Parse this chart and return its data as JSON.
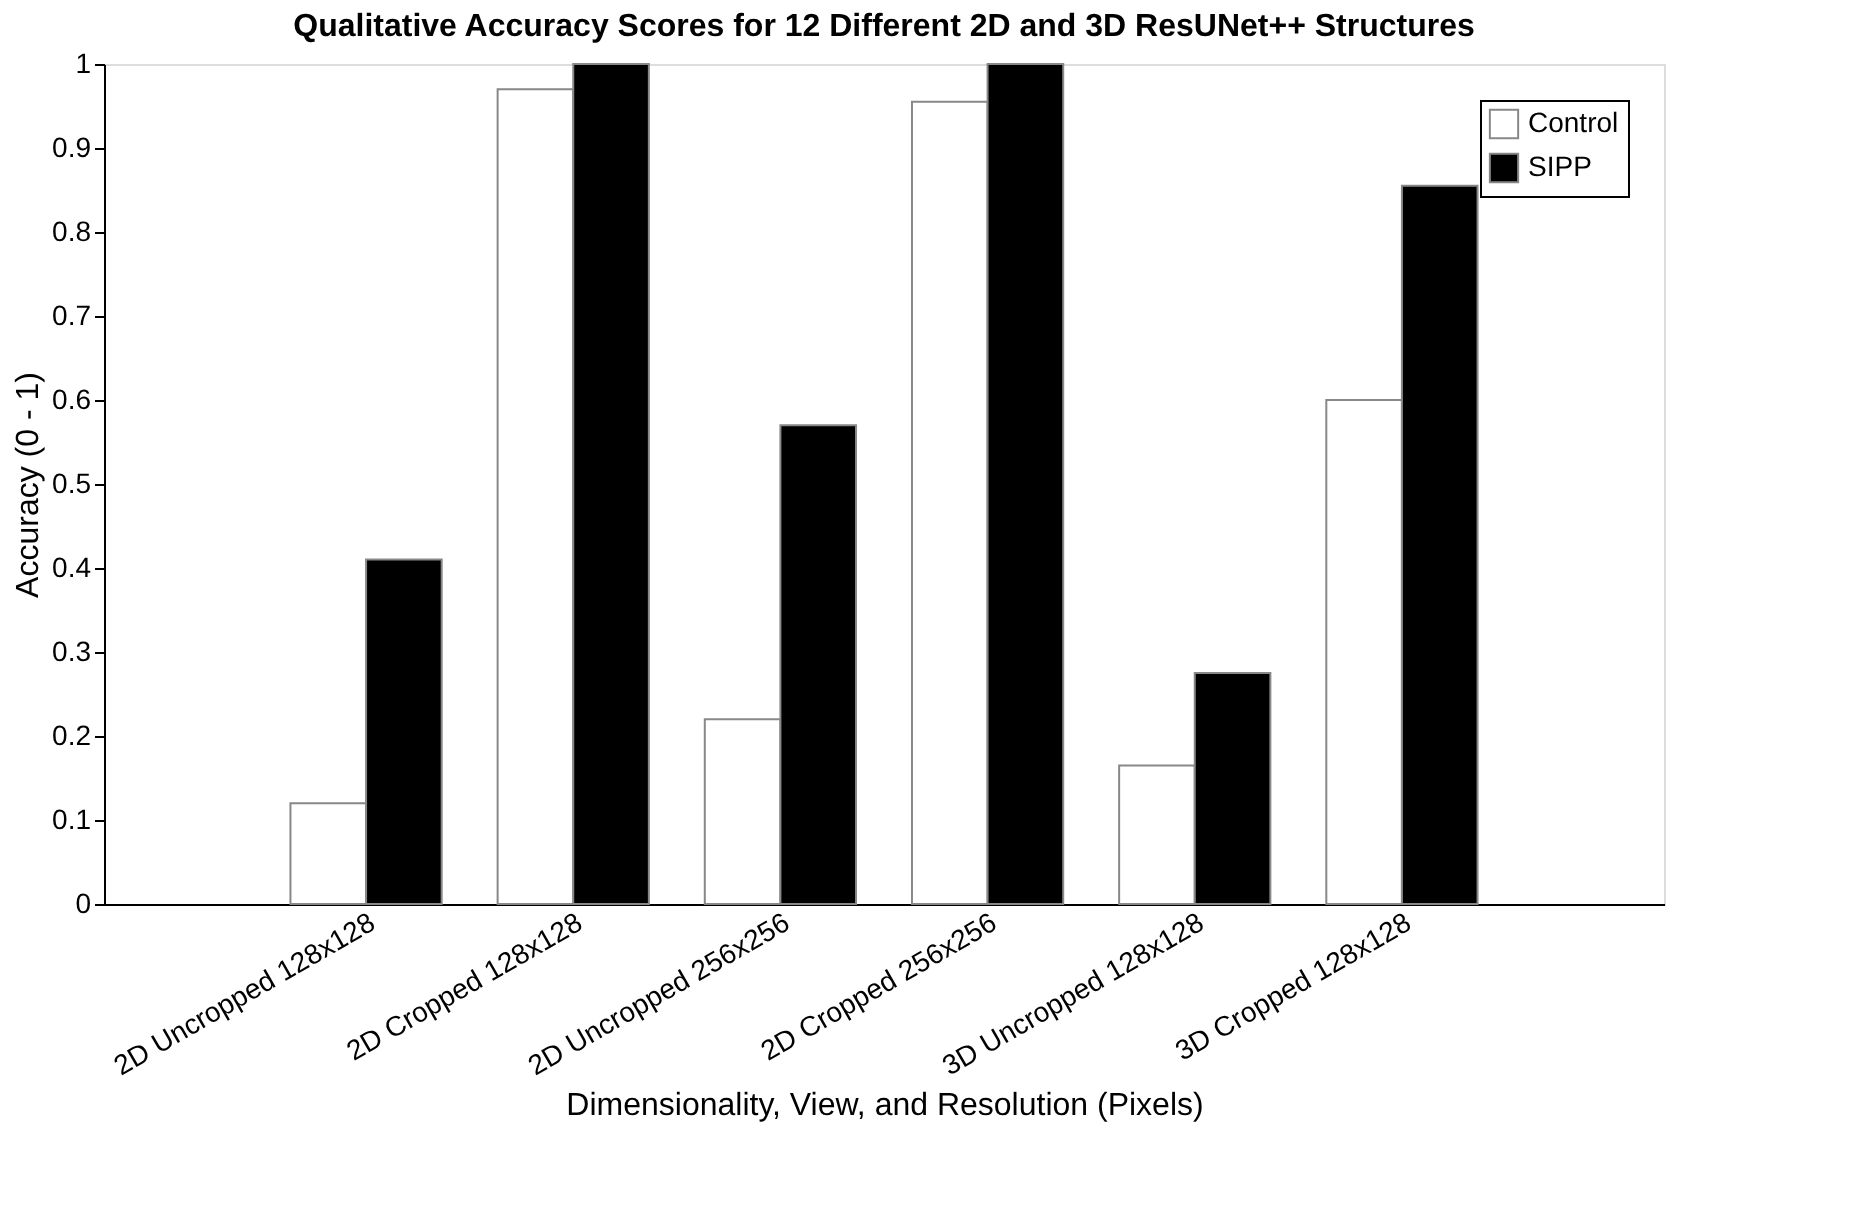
{
  "chart_data": {
    "type": "bar",
    "title": "Qualitative Accuracy Scores for 12 Different 2D and 3D ResUNet++ Structures",
    "xlabel": "Dimensionality, View, and Resolution (Pixels)",
    "ylabel": "Accuracy (0 - 1)",
    "categories": [
      "2D Uncropped 128x128",
      "2D Cropped 128x128",
      "2D Uncropped 256x256",
      "2D Cropped 256x256",
      "3D Uncropped 128x128",
      "3D Cropped 128x128"
    ],
    "series": [
      {
        "name": "Control",
        "color": "#ffffff",
        "values": [
          0.12,
          0.97,
          0.22,
          0.955,
          0.165,
          0.6
        ]
      },
      {
        "name": "SIPP",
        "color": "#000000",
        "values": [
          0.41,
          1.0,
          0.57,
          1.0,
          0.275,
          0.855
        ]
      }
    ],
    "ylim": [
      0,
      1
    ],
    "yticks": [
      0,
      0.1,
      0.2,
      0.3,
      0.4,
      0.5,
      0.6,
      0.7,
      0.8,
      0.9,
      1
    ],
    "grid": false,
    "legend": "top right"
  }
}
